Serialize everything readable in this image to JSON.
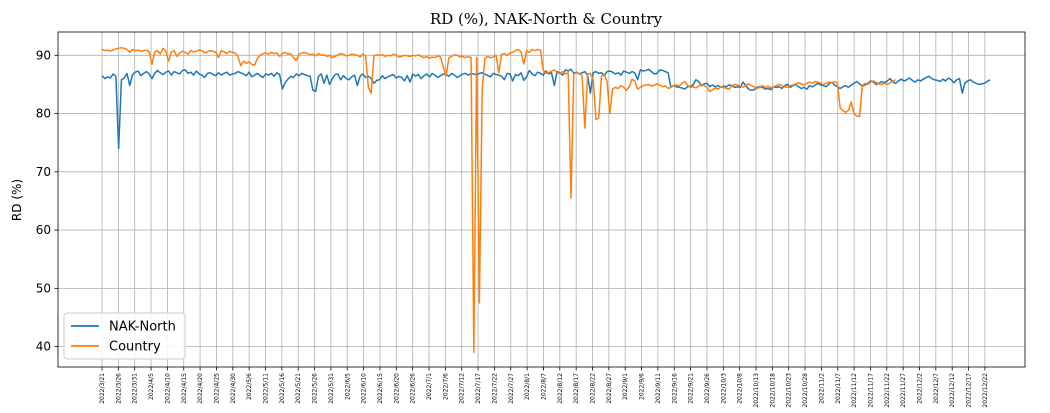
{
  "chart_data": {
    "type": "line",
    "title": "RD (%), NAK-North & Country",
    "xlabel": "",
    "ylabel": "RD (%)",
    "ylim": [
      36.5,
      94
    ],
    "yticks": [
      40,
      50,
      60,
      70,
      80,
      90
    ],
    "grid": true,
    "legend_position": "lower-left",
    "x_tick_labels": [
      "2022/3/21",
      "2022/3/26",
      "2022/3/31",
      "2022/4/5",
      "2022/4/10",
      "2022/4/15",
      "2022/4/20",
      "2022/4/25",
      "2022/4/30",
      "2022/5/6",
      "2022/5/11",
      "2022/5/16",
      "2022/5/21",
      "2022/5/26",
      "2022/5/31",
      "2022/6/5",
      "2022/6/10",
      "2022/6/15",
      "2022/6/20",
      "2022/6/26",
      "2022/7/1",
      "2022/7/6",
      "2022/7/12",
      "2022/7/17",
      "2022/7/22",
      "2022/7/27",
      "2022/8/1",
      "2022/8/7",
      "2022/8/12",
      "2022/8/17",
      "2022/8/22",
      "2022/8/27",
      "2022/9/1",
      "2022/9/6",
      "2022/9/11",
      "2022/9/16",
      "2022/9/21",
      "2022/9/26",
      "2022/10/3",
      "2022/10/8",
      "2022/10/13",
      "2022/10/18",
      "2022/10/23",
      "2022/10/28",
      "2022/11/2",
      "2022/11/7",
      "2022/11/12",
      "2022/11/17",
      "2022/11/22",
      "2022/11/27",
      "2022/12/2",
      "2022/12/7",
      "2022/12/12",
      "2022/12/17",
      "2022/12/22"
    ],
    "series": [
      {
        "name": "NAK-North",
        "color": "#1f77b4",
        "values": [
          86.5,
          86.0,
          86.3,
          86.1,
          86.8,
          86.4,
          74.0,
          85.8,
          86.1,
          86.9,
          84.8,
          86.7,
          87.1,
          87.3,
          86.5,
          86.9,
          87.2,
          86.8,
          86.0,
          86.9,
          87.4,
          87.0,
          86.7,
          87.1,
          87.3,
          86.6,
          87.2,
          87.0,
          86.8,
          87.4,
          87.5,
          86.9,
          87.1,
          86.6,
          87.3,
          86.8,
          86.6,
          86.2,
          86.9,
          87.0,
          86.7,
          86.5,
          87.0,
          86.6,
          86.9,
          87.1,
          86.6,
          86.8,
          86.9,
          87.2,
          87.0,
          86.8,
          86.5,
          87.1,
          86.3,
          86.6,
          86.9,
          86.5,
          86.2,
          86.8,
          86.6,
          86.9,
          86.4,
          87.0,
          86.7,
          84.2,
          85.3,
          85.9,
          86.4,
          86.2,
          86.8,
          86.5,
          86.9,
          86.7,
          86.5,
          86.4,
          84.0,
          83.8,
          86.4,
          86.8,
          85.2,
          86.6,
          85.0,
          86.0,
          86.7,
          86.8,
          85.8,
          86.5,
          86.0,
          85.8,
          86.3,
          86.6,
          84.8,
          86.4,
          86.8,
          86.2,
          86.4,
          86.0,
          85.2,
          85.7,
          85.8,
          86.5,
          86.0,
          86.3,
          86.5,
          86.7,
          86.1,
          86.4,
          86.2,
          85.6,
          86.5,
          85.4,
          86.8,
          86.4,
          86.7,
          86.0,
          86.5,
          86.8,
          86.3,
          86.9,
          86.6,
          86.2,
          86.5,
          86.8,
          86.7,
          86.4,
          86.9,
          86.6,
          86.2,
          86.5,
          86.8,
          86.9,
          86.6,
          86.9,
          86.8,
          86.6,
          86.9,
          87.0,
          86.8,
          86.5,
          86.3,
          86.9,
          86.7,
          86.6,
          86.4,
          85.8,
          86.9,
          86.8,
          85.6,
          86.7,
          86.5,
          87.0,
          85.7,
          86.3,
          87.4,
          86.8,
          86.5,
          87.1,
          86.9,
          86.6,
          87.3,
          86.8,
          87.0,
          84.8,
          87.2,
          87.0,
          86.6,
          87.5,
          87.3,
          87.6,
          86.9,
          87.1,
          86.8,
          87.0,
          87.2,
          86.6,
          83.5,
          87.0,
          87.2,
          86.9,
          87.0,
          86.5,
          87.2,
          87.3,
          87.1,
          86.8,
          87.0,
          86.6,
          87.3,
          87.1,
          86.9,
          87.2,
          87.0,
          85.8,
          87.5,
          87.3,
          87.4,
          87.6,
          87.2,
          86.8,
          86.9,
          87.5,
          87.4,
          87.2,
          87.0,
          84.5,
          84.8,
          84.6,
          84.5,
          84.4,
          84.2,
          84.6,
          84.7,
          84.9,
          85.8,
          85.5,
          84.8,
          85.1,
          85.2,
          84.6,
          84.9,
          84.6,
          84.8,
          84.5,
          84.7,
          84.6,
          84.9,
          84.8,
          84.5,
          84.6,
          84.5,
          85.4,
          84.8,
          84.2,
          84.0,
          84.1,
          84.5,
          84.6,
          84.5,
          84.2,
          84.3,
          84.1,
          84.6,
          84.5,
          84.6,
          84.3,
          84.8,
          85.0,
          84.5,
          84.8,
          85.0,
          84.6,
          84.3,
          84.5,
          84.2,
          84.8,
          84.6,
          84.9,
          85.2,
          84.9,
          84.8,
          84.6,
          85.1,
          85.4,
          84.9,
          84.6,
          84.3,
          84.6,
          84.8,
          84.5,
          84.9,
          85.2,
          85.5,
          85.1,
          84.7,
          84.9,
          85.2,
          85.6,
          85.4,
          85.0,
          85.2,
          85.5,
          85.3,
          85.6,
          86.0,
          85.4,
          85.2,
          85.6,
          85.9,
          85.6,
          85.8,
          86.1,
          85.7,
          85.4,
          85.8,
          85.6,
          85.9,
          86.2,
          86.4,
          86.0,
          85.8,
          85.7,
          85.5,
          85.9,
          85.6,
          86.1,
          85.8,
          85.3,
          85.8,
          86.0,
          83.5,
          85.3,
          85.6,
          85.8,
          85.4,
          85.2,
          85.0,
          85.1,
          85.2,
          85.5,
          85.8
        ],
        "values_note_removed": ""
      },
      {
        "name": "Country",
        "color": "#ff7f0e",
        "values": [
          91.0,
          90.8,
          90.9,
          90.7,
          90.9,
          91.1,
          91.2,
          91.3,
          91.2,
          91.0,
          90.5,
          91.0,
          90.8,
          90.9,
          90.7,
          90.8,
          90.9,
          90.6,
          88.5,
          90.6,
          90.8,
          90.2,
          91.2,
          90.7,
          89.0,
          90.6,
          90.8,
          89.8,
          90.4,
          90.7,
          90.5,
          90.2,
          90.8,
          90.6,
          90.7,
          90.9,
          90.8,
          90.4,
          90.6,
          90.8,
          90.7,
          90.5,
          89.6,
          90.8,
          90.6,
          90.3,
          90.7,
          90.5,
          90.4,
          89.8,
          88.2,
          89.0,
          88.6,
          88.9,
          88.4,
          88.3,
          89.5,
          90.0,
          90.3,
          90.4,
          90.2,
          90.5,
          90.3,
          90.4,
          89.8,
          90.3,
          90.5,
          90.2,
          90.3,
          89.6,
          89.1,
          90.2,
          90.4,
          90.5,
          90.3,
          90.1,
          90.2,
          89.9,
          90.3,
          90.0,
          90.1,
          89.8,
          90.0,
          89.6,
          89.8,
          90.1,
          90.3,
          90.2,
          89.9,
          90.0,
          90.2,
          90.1,
          90.0,
          89.7,
          90.2,
          89.9,
          84.5,
          83.5,
          89.9,
          90.1,
          90.0,
          90.1,
          89.8,
          90.0,
          89.9,
          90.2,
          90.0,
          89.7,
          89.8,
          90.0,
          89.9,
          89.8,
          90.0,
          89.9,
          90.1,
          89.8,
          89.6,
          89.8,
          89.5,
          89.7,
          89.6,
          89.9,
          89.7,
          88.0,
          86.5,
          89.6,
          89.8,
          90.1,
          90.0,
          89.7,
          89.8,
          89.6,
          89.8,
          89.6,
          39.0,
          89.6,
          47.5,
          84.0,
          89.5,
          89.8,
          89.6,
          89.7,
          90.0,
          87.0,
          90.2,
          90.3,
          90.0,
          90.4,
          90.5,
          90.8,
          91.0,
          90.6,
          88.5,
          90.8,
          90.5,
          91.0,
          90.8,
          91.0,
          90.9,
          87.5,
          86.9,
          87.0,
          87.3,
          87.5,
          87.0,
          86.9,
          87.2,
          86.8,
          87.0,
          65.5,
          86.8,
          87.0,
          86.9,
          86.5,
          77.5,
          86.8,
          86.9,
          85.8,
          79.0,
          79.2,
          86.5,
          86.7,
          85.5,
          80.0,
          84.2,
          84.5,
          84.3,
          84.8,
          84.5,
          84.0,
          84.6,
          85.9,
          85.6,
          84.2,
          84.5,
          84.8,
          84.9,
          85.0,
          84.7,
          84.9,
          85.1,
          84.9,
          84.6,
          84.8,
          84.3,
          84.5,
          84.8,
          84.9,
          84.7,
          85.2,
          85.5,
          84.9,
          84.5,
          84.6,
          84.4,
          84.7,
          85.0,
          84.8,
          84.5,
          83.8,
          84.1,
          84.4,
          84.2,
          84.6,
          84.5,
          84.3,
          84.2,
          84.8,
          85.0,
          84.9,
          84.7,
          84.5,
          84.9,
          85.1,
          84.8,
          84.6,
          84.3,
          84.5,
          84.8,
          84.5,
          84.7,
          84.4,
          84.6,
          84.8,
          85.0,
          84.8,
          84.6,
          84.5,
          84.8,
          84.9,
          85.1,
          85.3,
          85.1,
          84.9,
          85.2,
          85.4,
          85.2,
          85.5,
          85.4,
          85.2,
          85.0,
          85.2,
          85.4,
          85.3,
          85.5,
          85.2,
          81.0,
          80.5,
          80.2,
          80.6,
          82.0,
          80.0,
          79.6,
          79.5,
          84.8,
          85.2,
          85.0,
          85.4,
          85.6,
          85.3,
          85.1,
          85.0,
          85.2,
          85.0,
          85.3,
          85.6,
          85.8
        ]
      }
    ]
  },
  "legend": {
    "items": [
      {
        "label": "NAK-North",
        "color": "#1f77b4"
      },
      {
        "label": "Country",
        "color": "#ff7f0e"
      }
    ]
  }
}
